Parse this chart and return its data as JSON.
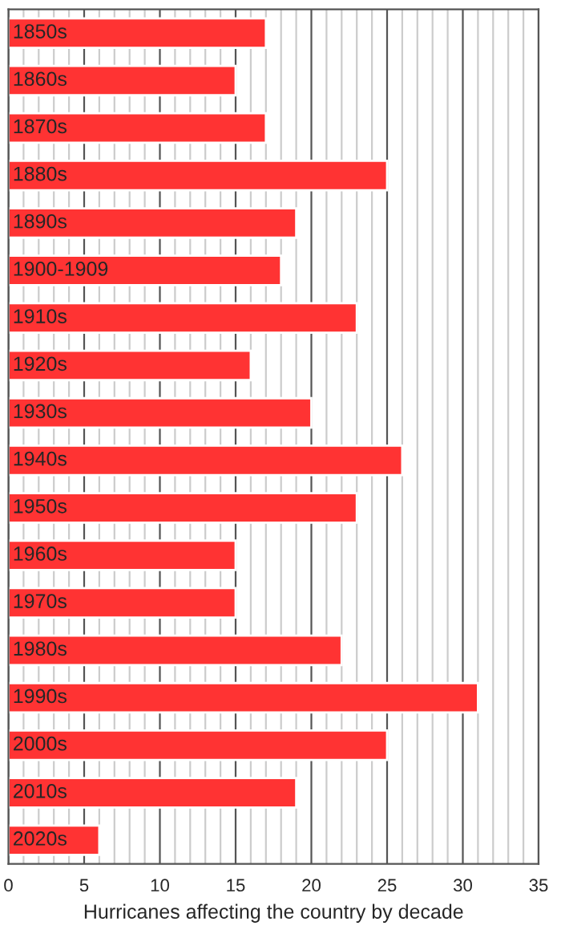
{
  "chart_data": {
    "type": "bar",
    "orientation": "horizontal",
    "xlabel": "Hurricanes affecting the country by decade",
    "categories": [
      "1850s",
      "1860s",
      "1870s",
      "1880s",
      "1890s",
      "1900-1909",
      "1910s",
      "1920s",
      "1930s",
      "1940s",
      "1950s",
      "1960s",
      "1970s",
      "1980s",
      "1990s",
      "2000s",
      "2010s",
      "2020s"
    ],
    "values": [
      17,
      15,
      17,
      25,
      19,
      18,
      23,
      16,
      20,
      26,
      23,
      15,
      15,
      22,
      31,
      25,
      19,
      6
    ],
    "color": "#ff3333",
    "xlim": [
      0,
      35
    ],
    "xticks": [
      0,
      {
        "value": 1,
        "label": null
      },
      {
        "value": 2,
        "label": null
      },
      {
        "value": 3,
        "label": null
      },
      {
        "value": 4,
        "label": null
      },
      5,
      {
        "value": 6,
        "label": null
      },
      {
        "value": 7,
        "label": null
      },
      {
        "value": 8,
        "label": null
      },
      {
        "value": 9,
        "label": null
      },
      10,
      {
        "value": 11,
        "label": null
      },
      {
        "value": 12,
        "label": null
      },
      {
        "value": 13,
        "label": null
      },
      {
        "value": 14,
        "label": null
      },
      15,
      {
        "value": 16,
        "label": null
      },
      {
        "value": 17,
        "label": null
      },
      {
        "value": 18,
        "label": null
      },
      {
        "value": 19,
        "label": null
      },
      20,
      {
        "value": 21,
        "label": null
      },
      {
        "value": 22,
        "label": null
      },
      {
        "value": 23,
        "label": null
      },
      {
        "value": 24,
        "label": null
      },
      25,
      {
        "value": 26,
        "label": null
      },
      {
        "value": 27,
        "label": null
      },
      {
        "value": 28,
        "label": null
      },
      {
        "value": 29,
        "label": null
      },
      30,
      {
        "value": 31,
        "label": null
      },
      {
        "value": 32,
        "label": null
      },
      {
        "value": 33,
        "label": null
      },
      {
        "value": 34,
        "label": null
      },
      35
    ],
    "grid": "x"
  }
}
